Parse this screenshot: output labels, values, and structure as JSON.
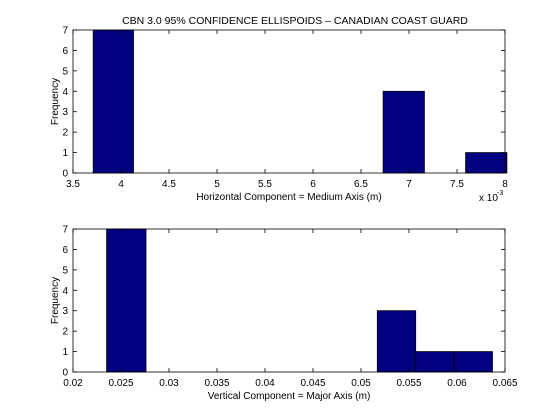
{
  "figure_title": "CBN 3.0 95% CONFIDENCE ELLISPOIDS – CANADIAN COAST GUARD",
  "colors": {
    "bar_fill": "#000080",
    "bar_edge": "#000000",
    "axes": "#000000",
    "background": "#ffffff"
  },
  "chart_data": [
    {
      "type": "bar",
      "title": "CBN 3.0 95% CONFIDENCE ELLISPOIDS – CANADIAN COAST GUARD",
      "xlabel": "Horizontal Component = Medium Axis (m)",
      "ylabel": "Frequency",
      "x_multiplier": "x 10",
      "x_multiplier_exp": "-3",
      "xlim": [
        3.5,
        8
      ],
      "ylim": [
        0,
        7
      ],
      "xticks": [
        3.5,
        4,
        4.5,
        5,
        5.5,
        6,
        6.5,
        7,
        7.5,
        8
      ],
      "xtick_labels": [
        "3.5",
        "4",
        "4.5",
        "5",
        "5.5",
        "6",
        "6.5",
        "7",
        "7.5",
        "8"
      ],
      "yticks": [
        0,
        1,
        2,
        3,
        4,
        5,
        6,
        7
      ],
      "ytick_labels": [
        "0",
        "1",
        "2",
        "3",
        "4",
        "5",
        "6",
        "7"
      ],
      "grid": false,
      "bins": [
        {
          "x0": 3.71,
          "x1": 4.13,
          "count": 7
        },
        {
          "x0": 6.73,
          "x1": 7.16,
          "count": 4
        },
        {
          "x0": 7.59,
          "x1": 8.02,
          "count": 1
        }
      ]
    },
    {
      "type": "bar",
      "title": "",
      "xlabel": "Vertical Component = Major Axis (m)",
      "ylabel": "Frequency",
      "xlim": [
        0.02,
        0.065
      ],
      "ylim": [
        0,
        7
      ],
      "xticks": [
        0.02,
        0.025,
        0.03,
        0.035,
        0.04,
        0.045,
        0.05,
        0.055,
        0.06,
        0.065
      ],
      "xtick_labels": [
        "0.02",
        "0.025",
        "0.03",
        "0.035",
        "0.04",
        "0.045",
        "0.05",
        "0.055",
        "0.06",
        "0.065"
      ],
      "yticks": [
        0,
        1,
        2,
        3,
        4,
        5,
        6,
        7
      ],
      "ytick_labels": [
        "0",
        "1",
        "2",
        "3",
        "4",
        "5",
        "6",
        "7"
      ],
      "grid": false,
      "bins": [
        {
          "x0": 0.0235,
          "x1": 0.0276,
          "count": 7
        },
        {
          "x0": 0.0517,
          "x1": 0.0557,
          "count": 3
        },
        {
          "x0": 0.0557,
          "x1": 0.0597,
          "count": 1
        },
        {
          "x0": 0.0597,
          "x1": 0.0637,
          "count": 1
        }
      ]
    }
  ]
}
